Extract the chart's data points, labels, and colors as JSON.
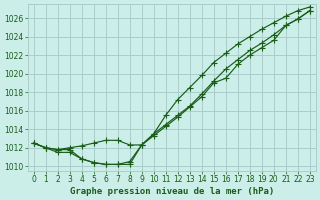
{
  "title": "Graphe pression niveau de la mer (hPa)",
  "background_color": "#cceee8",
  "grid_color": "#aacccc",
  "line_color": "#1a5c1a",
  "marker_color": "#1a5c1a",
  "xlim": [
    -0.5,
    23.5
  ],
  "ylim": [
    1009.5,
    1027.5
  ],
  "yticks": [
    1010,
    1012,
    1014,
    1016,
    1018,
    1020,
    1022,
    1024,
    1026
  ],
  "xticks": [
    0,
    1,
    2,
    3,
    4,
    5,
    6,
    7,
    8,
    9,
    10,
    11,
    12,
    13,
    14,
    15,
    16,
    17,
    18,
    19,
    20,
    21,
    22,
    23
  ],
  "series1_x": [
    0,
    1,
    2,
    3,
    4,
    5,
    6,
    7,
    8,
    9,
    10,
    11,
    12,
    13,
    14,
    15,
    16,
    17,
    18,
    19,
    20,
    21,
    22,
    23
  ],
  "series1_y": [
    1012.5,
    1012.0,
    1011.8,
    1011.8,
    1010.8,
    1010.4,
    1010.2,
    1010.2,
    1010.2,
    1012.3,
    1013.3,
    1014.3,
    1015.3,
    1016.4,
    1017.5,
    1019.0,
    1019.5,
    1021.0,
    1022.0,
    1022.8,
    1023.6,
    1025.2,
    1025.9,
    1026.8
  ],
  "series2_x": [
    0,
    1,
    2,
    3,
    4,
    5,
    6,
    7,
    8,
    9,
    10,
    11,
    12,
    13,
    14,
    15,
    16,
    17,
    18,
    19,
    20,
    21,
    22,
    23
  ],
  "series2_y": [
    1012.5,
    1012.0,
    1011.8,
    1012.0,
    1012.2,
    1012.5,
    1012.8,
    1012.8,
    1012.3,
    1012.3,
    1013.5,
    1014.5,
    1015.5,
    1016.5,
    1017.8,
    1019.2,
    1020.5,
    1021.5,
    1022.5,
    1023.3,
    1024.2,
    1025.2,
    1025.9,
    1026.8
  ],
  "series3_x": [
    0,
    1,
    2,
    3,
    4,
    5,
    6,
    7,
    8,
    9,
    10,
    11,
    12,
    13,
    14,
    15,
    16,
    17,
    18,
    19,
    20,
    21,
    22,
    23
  ],
  "series3_y": [
    1012.5,
    1012.0,
    1011.5,
    1011.5,
    1010.8,
    1010.4,
    1010.2,
    1010.2,
    1010.5,
    1012.3,
    1013.5,
    1015.5,
    1017.2,
    1018.5,
    1019.8,
    1021.2,
    1022.2,
    1023.2,
    1024.0,
    1024.8,
    1025.5,
    1026.2,
    1026.8,
    1027.2
  ],
  "title_fontsize": 6.5,
  "tick_fontsize": 5.5
}
